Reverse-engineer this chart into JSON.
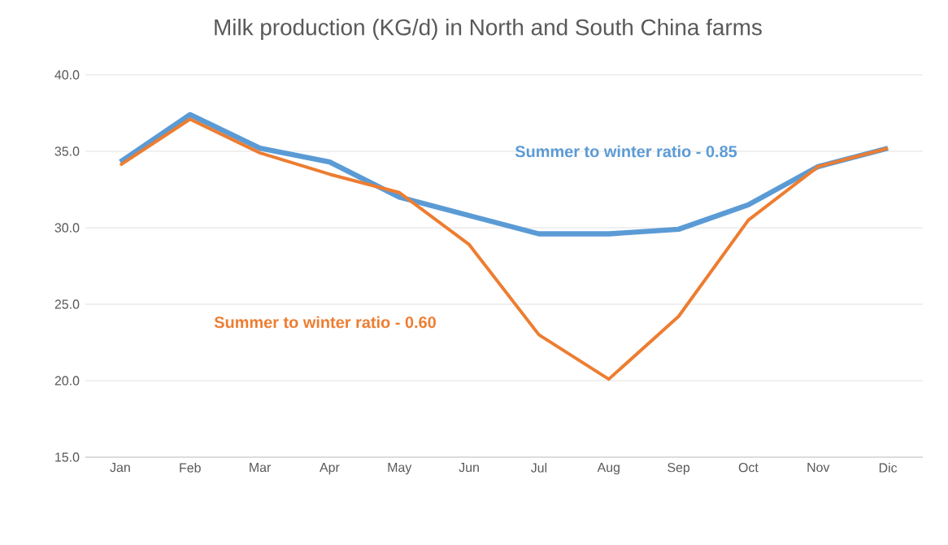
{
  "chart_data": {
    "type": "line",
    "title": "Milk production (KG/d) in North and South China farms",
    "categories": [
      "Jan",
      "Feb",
      "Mar",
      "Apr",
      "May",
      "Jun",
      "Jul",
      "Aug",
      "Sep",
      "Oct",
      "Nov",
      "Dic"
    ],
    "series": [
      {
        "color": "#5b9bd5",
        "values": [
          34.3,
          37.4,
          35.2,
          34.3,
          32.0,
          30.8,
          29.6,
          29.6,
          29.9,
          31.5,
          34.0,
          35.2
        ]
      },
      {
        "color": "#ed7d31",
        "values": [
          34.1,
          37.1,
          34.9,
          33.5,
          32.3,
          28.9,
          23.0,
          20.1,
          24.2,
          30.5,
          34.0,
          35.2
        ]
      }
    ],
    "ylim": [
      15,
      40
    ],
    "yticks": [
      {
        "value": 15,
        "label": "15.0"
      },
      {
        "value": 20,
        "label": "20.0"
      },
      {
        "value": 25,
        "label": "25.0"
      },
      {
        "value": 30,
        "label": "30.0"
      },
      {
        "value": 35,
        "label": "35.0"
      },
      {
        "value": 40,
        "label": "40.0"
      }
    ],
    "grid": "y",
    "marker": "none",
    "line_style": "solid",
    "annotations": [
      "Summer to winter ratio - 0.85",
      "Summer to winter ratio - 0.60"
    ]
  }
}
